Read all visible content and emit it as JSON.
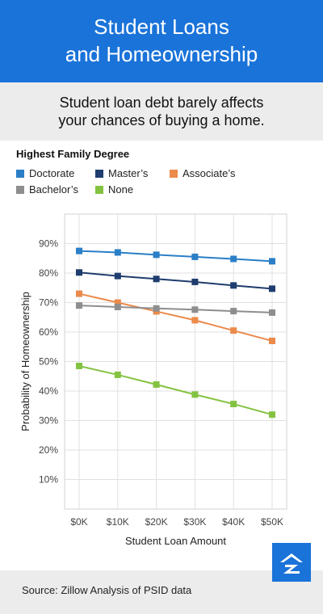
{
  "header": {
    "title_line1": "Student Loans",
    "title_line2": "and Homeownership"
  },
  "subtitle": {
    "line1": "Student loan debt barely affects",
    "line2": "your chances of buying a home."
  },
  "footer": {
    "source": "Source: Zillow Analysis of PSID data",
    "logo_icon": "zillow-z-logo-icon"
  },
  "chart_data": {
    "type": "line",
    "legend_title": "Highest Family Degree",
    "legend_placement": "top-left",
    "xlabel": "Student Loan Amount",
    "ylabel": "Probability of Homeownership",
    "x": [
      0,
      10,
      20,
      30,
      40,
      50
    ],
    "x_tick_labels": [
      "$0K",
      "$10K",
      "$20K",
      "$30K",
      "$40K",
      "$50K"
    ],
    "y_ticks": [
      10,
      20,
      30,
      40,
      50,
      60,
      70,
      80,
      90
    ],
    "y_tick_labels": [
      "10%",
      "20%",
      "30%",
      "40%",
      "50%",
      "60%",
      "70%",
      "80%",
      "90%"
    ],
    "ylim": [
      0,
      100
    ],
    "grid": true,
    "series": [
      {
        "name": "Doctorate",
        "color": "#2a7fc7",
        "values": [
          87.5,
          87.0,
          86.2,
          85.5,
          84.8,
          84.0
        ]
      },
      {
        "name": "Master’s",
        "color": "#1f3d6e",
        "values": [
          80.2,
          79.0,
          78.0,
          77.0,
          75.8,
          74.7
        ]
      },
      {
        "name": "Associate’s",
        "color": "#eb8a4a",
        "values": [
          73.0,
          70.0,
          67.0,
          64.0,
          60.5,
          57.0
        ]
      },
      {
        "name": "Bachelor’s",
        "color": "#8e8e8e",
        "values": [
          69.0,
          68.5,
          68.0,
          67.6,
          67.1,
          66.6
        ]
      },
      {
        "name": "None",
        "color": "#84c341",
        "values": [
          48.5,
          45.5,
          42.2,
          38.8,
          35.6,
          32.0
        ]
      }
    ]
  }
}
